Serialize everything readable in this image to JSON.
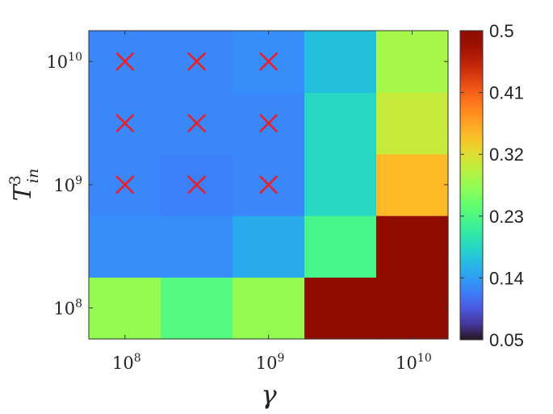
{
  "chart_data": {
    "type": "heatmap",
    "title": "",
    "xlabel": "γ",
    "ylabel": "T",
    "ylabel_sup": "3",
    "ylabel_sub": "in",
    "x_scale": "log",
    "y_scale": "log",
    "x_ticks": [
      {
        "base": "10",
        "exp": "8",
        "value": 100000000.0
      },
      {
        "base": "10",
        "exp": "9",
        "value": 1000000000.0
      },
      {
        "base": "10",
        "exp": "10",
        "value": 10000000000.0
      }
    ],
    "y_ticks": [
      {
        "base": "10",
        "exp": "8",
        "value": 100000000.0
      },
      {
        "base": "10",
        "exp": "9",
        "value": 1000000000.0
      },
      {
        "base": "10",
        "exp": "10",
        "value": 10000000000.0
      }
    ],
    "x_centers": [
      100000000.0,
      316000000.0,
      1000000000.0,
      3160000000.0,
      10000000000.0
    ],
    "y_centers": [
      100000000.0,
      316000000.0,
      1000000000.0,
      3160000000.0,
      10000000000.0
    ],
    "xlim": [
      56000000.0,
      17800000000.0
    ],
    "ylim": [
      56000000.0,
      17800000000.0
    ],
    "values": [
      [
        0.275,
        0.235,
        0.275,
        0.5,
        0.5
      ],
      [
        0.13,
        0.13,
        0.15,
        0.225,
        0.5
      ],
      [
        0.125,
        0.12,
        0.125,
        0.185,
        0.35
      ],
      [
        0.125,
        0.125,
        0.125,
        0.185,
        0.305
      ],
      [
        0.125,
        0.125,
        0.13,
        0.165,
        0.285
      ]
    ],
    "values_row_order": "bottom-to-top (row 0 = T=1e8)",
    "markers": {
      "symbol": "×",
      "color": "#e8202a",
      "points": [
        {
          "x": 100000000.0,
          "y": 10000000000.0
        },
        {
          "x": 316000000.0,
          "y": 10000000000.0
        },
        {
          "x": 1000000000.0,
          "y": 10000000000.0
        },
        {
          "x": 100000000.0,
          "y": 3160000000.0
        },
        {
          "x": 316000000.0,
          "y": 3160000000.0
        },
        {
          "x": 1000000000.0,
          "y": 3160000000.0
        },
        {
          "x": 100000000.0,
          "y": 1000000000.0
        },
        {
          "x": 316000000.0,
          "y": 1000000000.0
        },
        {
          "x": 1000000000.0,
          "y": 1000000000.0
        }
      ]
    },
    "colorbar": {
      "colormap": "turbo",
      "min": 0.05,
      "max": 0.5,
      "tick_labels": [
        "0.5",
        "0.41",
        "0.32",
        "0.23",
        "0.14",
        "0.05"
      ]
    },
    "grid": false,
    "legend": "none"
  }
}
